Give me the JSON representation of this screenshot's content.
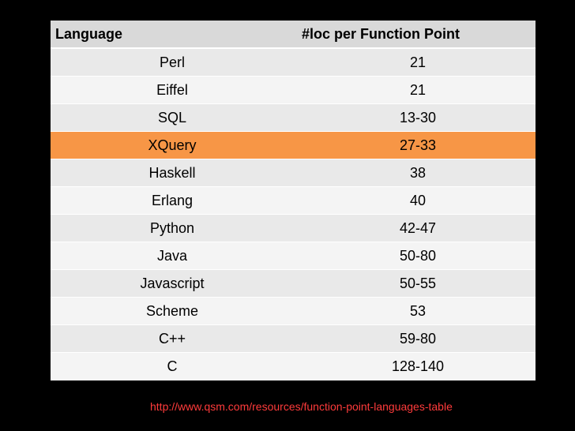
{
  "table": {
    "headers": [
      "Language",
      "#loc per Function Point"
    ],
    "rows": [
      {
        "language": "Perl",
        "loc": "21"
      },
      {
        "language": "Eiffel",
        "loc": "21"
      },
      {
        "language": "SQL",
        "loc": "13-30"
      },
      {
        "language": "XQuery",
        "loc": "27-33",
        "highlighted": true
      },
      {
        "language": "Haskell",
        "loc": "38"
      },
      {
        "language": "Erlang",
        "loc": "40"
      },
      {
        "language": "Python",
        "loc": "42-47"
      },
      {
        "language": "Java",
        "loc": "50-80"
      },
      {
        "language": "Javascript",
        "loc": "50-55"
      },
      {
        "language": "Scheme",
        "loc": "53"
      },
      {
        "language": "C++",
        "loc": "59-80"
      },
      {
        "language": "C",
        "loc": "128-140"
      }
    ]
  },
  "source": {
    "url": "http://www.qsm.com/resources/function-point-languages-table"
  },
  "colors": {
    "background": "#000000",
    "header": "#d9d9d9",
    "row_odd": "#e9e9e9",
    "row_even": "#f4f4f4",
    "highlight": "#f79646",
    "source_link": "#ff3b3b"
  }
}
